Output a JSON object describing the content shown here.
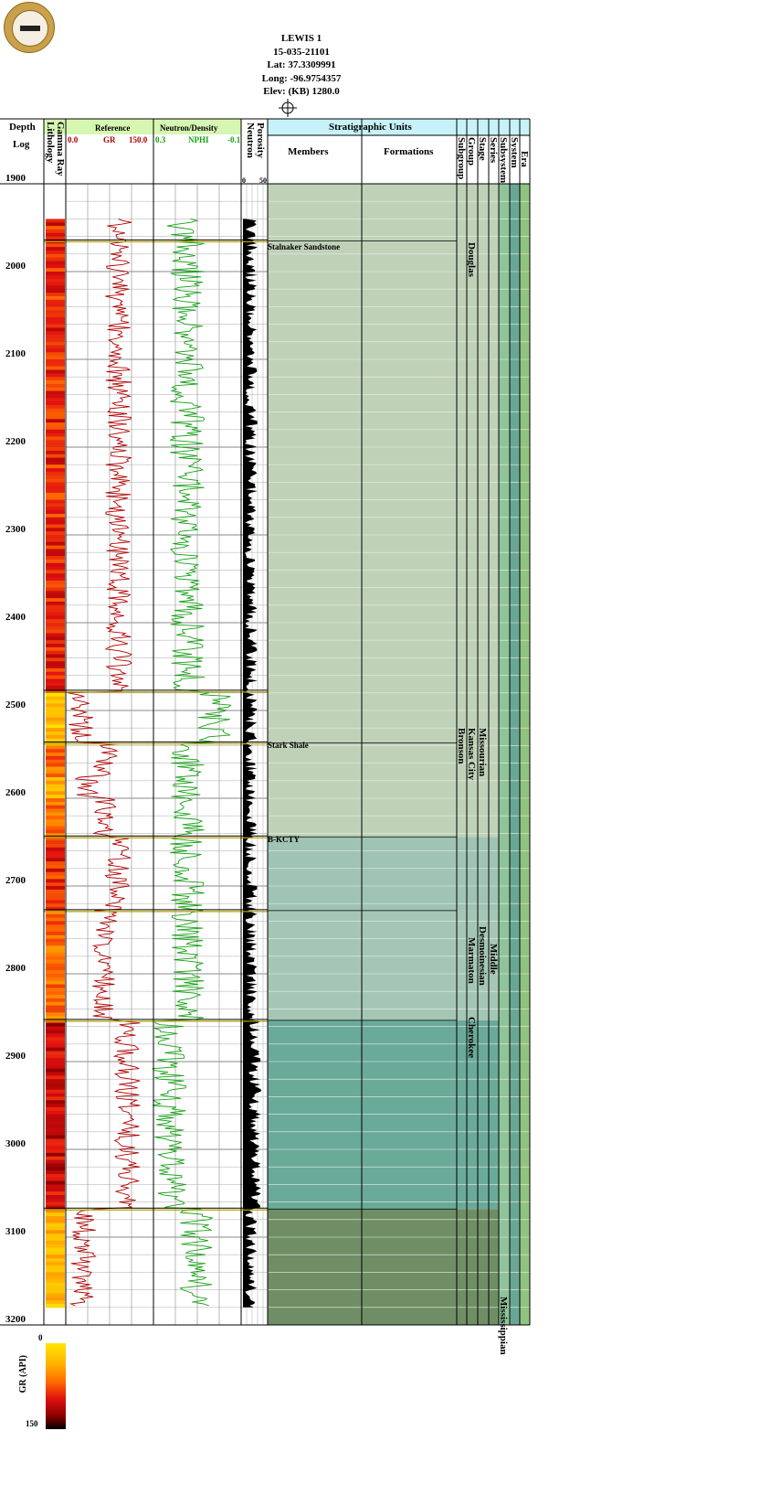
{
  "header": {
    "well_name": "LEWIS 1",
    "api": "15-035-21101",
    "lat": "Lat: 37.3309991",
    "long": "Long: -96.9754357",
    "elev": "Elev: (KB) 1280.0"
  },
  "tracks": {
    "depth_title": "Depth",
    "log_title": "Log",
    "lithology": "Lithology",
    "gamma_ray": "Gamma Ray",
    "reference": "Reference",
    "ref_min": "0.0",
    "ref_curve": "GR",
    "ref_max": "150.0",
    "neutron_density": "Neutron/Density",
    "nd_min": "0.3",
    "nd_curve": "NPHI",
    "nd_max": "-0.1",
    "porosity": "Porosity",
    "neutron": "Neutron",
    "por_min": "0",
    "por_max": "50",
    "strat_title": "Stratigraphic Units",
    "members": "Members",
    "formations": "Formations",
    "subgroup": "Subgroup",
    "group": "Group",
    "stage": "Stage",
    "series": "Series",
    "subsystem": "Subsystem",
    "system": "System",
    "era": "Era"
  },
  "depth_ticks": [
    "1900",
    "2000",
    "2100",
    "2200",
    "2300",
    "2400",
    "2500",
    "2600",
    "2700",
    "2800",
    "2900",
    "3000",
    "3100",
    "3200"
  ],
  "members": [
    "Stalnaker Sandstone",
    "Stark Shale",
    "B-KCTY"
  ],
  "groups": [
    "Douglas",
    "Kansas City",
    "Marmaton",
    "Cherokee"
  ],
  "subgroup": "Bronson",
  "stage": "Missourian",
  "series": "Desmoinesian",
  "subsystem": "Middle",
  "system": "Mississippian",
  "gr_scale": {
    "title": "GR (API)",
    "min": "0",
    "max": "150"
  },
  "colors": {
    "strat_header": "#c6f2f8",
    "ref_header": "#d6f7b2",
    "gr_curve": "#b00000",
    "nphi_curve": "#14a014",
    "zone_douglas": "#bfd2b8",
    "zone_kc": "#9fc3b4",
    "zone_marm": "#a5c6b4",
    "zone_cherokee": "#6aaa98",
    "zone_miss": "#6f8e66",
    "era_col": "#8fc49a",
    "system_col": "#6aa695"
  },
  "chart_data": {
    "type": "well-log",
    "depth_range": [
      1900,
      3200
    ],
    "tops": [
      {
        "name": "Stalnaker Sandstone",
        "depth": 1965
      },
      {
        "name": "Stark Shale",
        "depth": 2538
      },
      {
        "name": "B-KCTY",
        "depth": 2644
      }
    ]
  }
}
